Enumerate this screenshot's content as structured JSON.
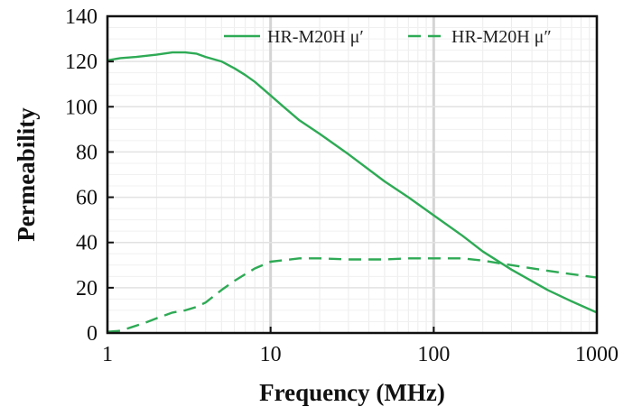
{
  "chart_data": {
    "type": "line",
    "title": "",
    "xlabel": "Frequency (MHz)",
    "ylabel": "Permeability",
    "xscale": "log",
    "xlim": [
      1,
      1000
    ],
    "ylim": [
      0,
      140
    ],
    "xticks": [
      1,
      10,
      100,
      1000
    ],
    "xtick_labels": [
      "1",
      "10",
      "100",
      "1000"
    ],
    "yticks": [
      0,
      20,
      40,
      60,
      80,
      100,
      120,
      140
    ],
    "ytick_labels": [
      "0",
      "20",
      "40",
      "60",
      "80",
      "100",
      "120",
      "140"
    ],
    "grid": true,
    "legend_position": "top-right",
    "color": "#2eaa55",
    "series": [
      {
        "name": "HR-M20H μ′",
        "style": "solid",
        "x": [
          1,
          1.2,
          1.5,
          2,
          2.5,
          3,
          3.5,
          4,
          5,
          6,
          7,
          8,
          10,
          12,
          15,
          20,
          30,
          50,
          70,
          100,
          150,
          200,
          300,
          500,
          700,
          1000
        ],
        "y": [
          120.5,
          121.5,
          122,
          123,
          124,
          124,
          123.5,
          122,
          120,
          117,
          114,
          111,
          105,
          100,
          94,
          88,
          79,
          67,
          60,
          52,
          43,
          36,
          28,
          19,
          14,
          9
        ]
      },
      {
        "name": "HR-M20H μ″",
        "style": "dashed",
        "x": [
          1,
          1.2,
          1.4,
          1.7,
          2,
          2.5,
          3,
          3.5,
          4,
          5,
          6,
          7,
          8,
          10,
          15,
          20,
          30,
          50,
          70,
          100,
          150,
          200,
          300,
          500,
          700,
          1000
        ],
        "y": [
          0.5,
          1,
          2.5,
          4.5,
          6.5,
          9,
          10,
          11.5,
          13.5,
          19,
          23,
          26,
          28.5,
          31.5,
          33,
          33,
          32.5,
          32.5,
          33,
          33,
          33,
          32,
          30,
          27.5,
          26,
          24.5
        ]
      }
    ]
  }
}
